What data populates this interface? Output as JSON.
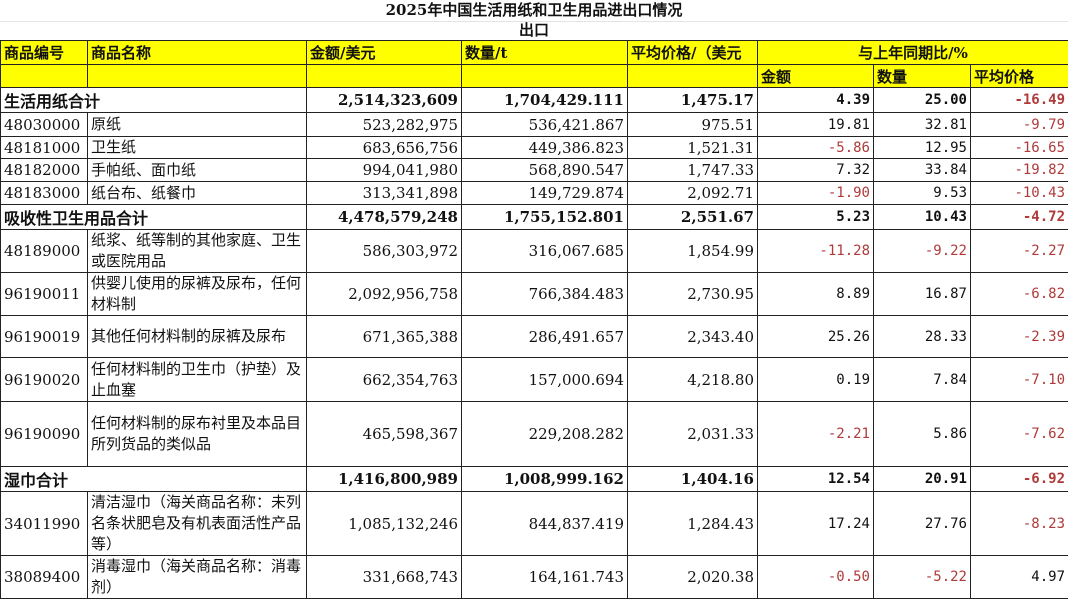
{
  "title": "2025年中国生活用纸和卫生用品进出口情况",
  "subtitle": "出口",
  "header": {
    "code": "商品编号",
    "name": "商品名称",
    "amount": "金额/美元",
    "quantity": "数量/t",
    "avg_price": "平均价格/（美元",
    "yoy": "与上年同期比/%",
    "yoy_amount": "金额",
    "yoy_quantity": "数量",
    "yoy_avg_price": "平均价格"
  },
  "colors": {
    "header_bg": "#ffff00",
    "negative": "#b03a3a"
  },
  "rows": [
    {
      "type": "total",
      "code": "生活用纸合计",
      "name": "",
      "amount": "2,514,323,609",
      "quantity": "1,704,429.111",
      "avg_price": "1,475.17",
      "yoy_amount": "4.39",
      "yoy_quantity": "25.00",
      "yoy_avg_price": "-16.49"
    },
    {
      "type": "item",
      "code": "48030000",
      "name": "原纸",
      "amount": "523,282,975",
      "quantity": "536,421.867",
      "avg_price": "975.51",
      "yoy_amount": "19.81",
      "yoy_quantity": "32.81",
      "yoy_avg_price": "-9.79"
    },
    {
      "type": "item",
      "code": "48181000",
      "name": "卫生纸",
      "amount": "683,656,756",
      "quantity": "449,386.823",
      "avg_price": "1,521.31",
      "yoy_amount": "-5.86",
      "yoy_quantity": "12.95",
      "yoy_avg_price": "-16.65"
    },
    {
      "type": "item",
      "code": "48182000",
      "name": "手帕纸、面巾纸",
      "amount": "994,041,980",
      "quantity": "568,890.547",
      "avg_price": "1,747.33",
      "yoy_amount": "7.32",
      "yoy_quantity": "33.84",
      "yoy_avg_price": "-19.82"
    },
    {
      "type": "item",
      "code": "48183000",
      "name": "纸台布、纸餐巾",
      "amount": "313,341,898",
      "quantity": "149,729.874",
      "avg_price": "2,092.71",
      "yoy_amount": "-1.90",
      "yoy_quantity": "9.53",
      "yoy_avg_price": "-10.43"
    },
    {
      "type": "total",
      "code": "吸收性卫生用品合计",
      "name": "",
      "amount": "4,478,579,248",
      "quantity": "1,755,152.801",
      "avg_price": "2,551.67",
      "yoy_amount": "5.23",
      "yoy_quantity": "10.43",
      "yoy_avg_price": "-4.72"
    },
    {
      "type": "item",
      "code": "48189000",
      "name": "纸浆、纸等制的其他家庭、卫生或医院用品",
      "amount": "586,303,972",
      "quantity": "316,067.685",
      "avg_price": "1,854.99",
      "yoy_amount": "-11.28",
      "yoy_quantity": "-9.22",
      "yoy_avg_price": "-2.27"
    },
    {
      "type": "item",
      "code": "96190011",
      "name": "供婴儿使用的尿裤及尿布，任何材料制",
      "amount": "2,092,956,758",
      "quantity": "766,384.483",
      "avg_price": "2,730.95",
      "yoy_amount": "8.89",
      "yoy_quantity": "16.87",
      "yoy_avg_price": "-6.82"
    },
    {
      "type": "item",
      "code": "96190019",
      "name": "其他任何材料制的尿裤及尿布",
      "amount": "671,365,388",
      "quantity": "286,491.657",
      "avg_price": "2,343.40",
      "yoy_amount": "25.26",
      "yoy_quantity": "28.33",
      "yoy_avg_price": "-2.39"
    },
    {
      "type": "item",
      "code": "96190020",
      "name": "任何材料制的卫生巾（护垫）及止血塞",
      "amount": "662,354,763",
      "quantity": "157,000.694",
      "avg_price": "4,218.80",
      "yoy_amount": "0.19",
      "yoy_quantity": "7.84",
      "yoy_avg_price": "-7.10"
    },
    {
      "type": "item",
      "code": "96190090",
      "name": "任何材料制的尿布衬里及本品目所列货品的类似品",
      "amount": "465,598,367",
      "quantity": "229,208.282",
      "avg_price": "2,031.33",
      "yoy_amount": "-2.21",
      "yoy_quantity": "5.86",
      "yoy_avg_price": "-7.62"
    },
    {
      "type": "total",
      "code": "湿巾合计",
      "name": "",
      "amount": "1,416,800,989",
      "quantity": "1,008,999.162",
      "avg_price": "1,404.16",
      "yoy_amount": "12.54",
      "yoy_quantity": "20.91",
      "yoy_avg_price": "-6.92"
    },
    {
      "type": "item",
      "code": "34011990",
      "name": "清洁湿巾（海关商品名称：未列名条状肥皂及有机表面活性产品等）",
      "amount": "1,085,132,246",
      "quantity": "844,837.419",
      "avg_price": "1,284.43",
      "yoy_amount": "17.24",
      "yoy_quantity": "27.76",
      "yoy_avg_price": "-8.23"
    },
    {
      "type": "item",
      "code": "38089400",
      "name": "消毒湿巾（海关商品名称：消毒剂）",
      "amount": "331,668,743",
      "quantity": "164,161.743",
      "avg_price": "2,020.38",
      "yoy_amount": "-0.50",
      "yoy_quantity": "-5.22",
      "yoy_avg_price": "4.97"
    }
  ]
}
